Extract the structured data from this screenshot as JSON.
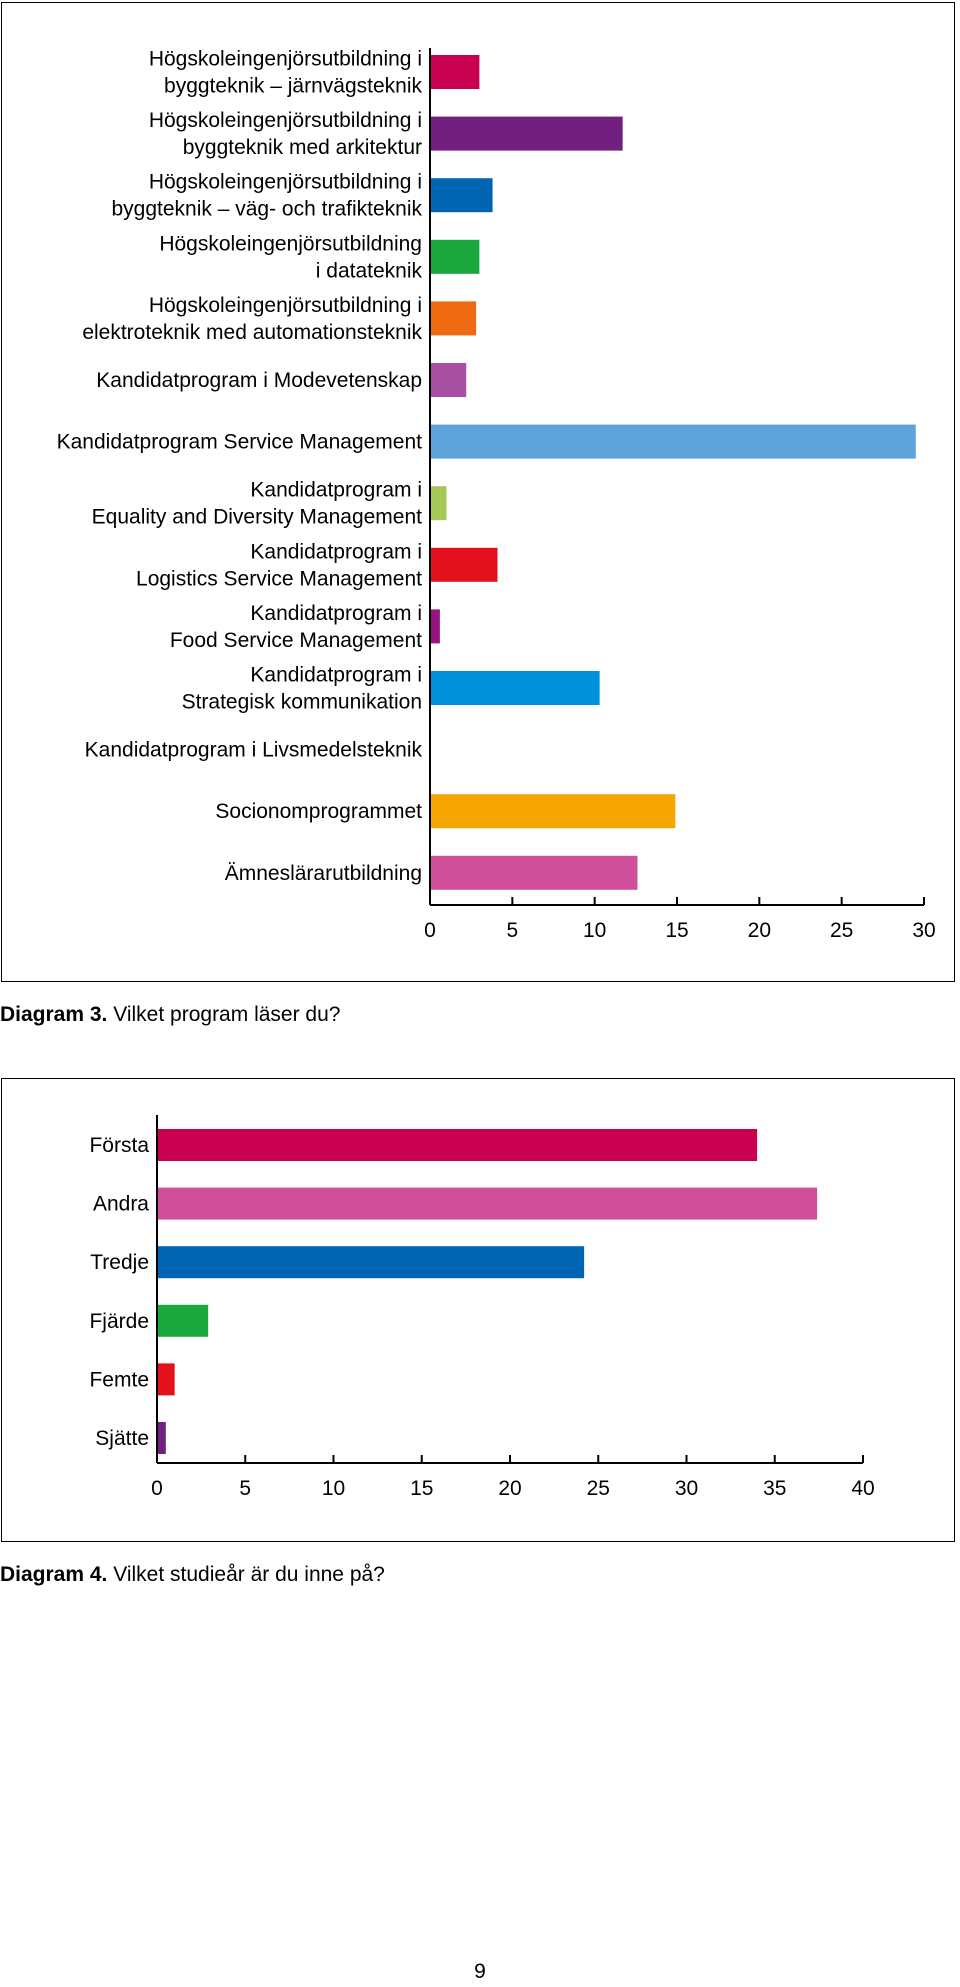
{
  "chart_data": [
    {
      "type": "bar",
      "orientation": "horizontal",
      "categories": [
        "Högskoleingenjörsutbildning i byggteknik – järnvägsteknik",
        "Högskoleingenjörsutbildning i byggteknik med arkitektur",
        "Högskoleingenjörsutbildning i byggteknik – väg- och trafikteknik",
        "Högskoleingenjörsutbildning i datateknik",
        "Högskoleingenjörsutbildning i elektroteknik med automationsteknik",
        "Kandidatprogram i Modevetenskap",
        "Kandidatprogram Service Management",
        "Kandidatprogram i Equality and Diversity Management",
        "Kandidatprogram i Logistics Service Management",
        "Kandidatprogram i Food Service Management",
        "Kandidatprogram i Strategisk kommunikation",
        "Kandidatprogram i Livsmedelsteknik",
        "Socionomprogrammet",
        "Ämneslärarutbildning"
      ],
      "label_lines": [
        [
          "Högskoleingenjörsutbildning i",
          "byggteknik – järnvägsteknik"
        ],
        [
          "Högskoleingenjörsutbildning i",
          "byggteknik med arkitektur"
        ],
        [
          "Högskoleingenjörsutbildning i",
          "byggteknik – väg- och trafikteknik"
        ],
        [
          "Högskoleingenjörsutbildning",
          "i datateknik"
        ],
        [
          "Högskoleingenjörsutbildning i",
          "elektroteknik med automationsteknik"
        ],
        [
          "Kandidatprogram i Modevetenskap"
        ],
        [
          "Kandidatprogram Service Management"
        ],
        [
          "Kandidatprogram i",
          "Equality and Diversity Management"
        ],
        [
          "Kandidatprogram i",
          "Logistics Service Management"
        ],
        [
          "Kandidatprogram i",
          "Food Service Management"
        ],
        [
          "Kandidatprogram i",
          "Strategisk kommunikation"
        ],
        [
          "Kandidatprogram i Livsmedelsteknik"
        ],
        [
          "Socionomprogrammet"
        ],
        [
          "Ämneslärarutbildning"
        ]
      ],
      "values": [
        3,
        11.7,
        3.8,
        3,
        2.8,
        2.2,
        29.5,
        1,
        4.1,
        0.6,
        10.3,
        0,
        14.9,
        12.6
      ],
      "colors": [
        "#c8004f",
        "#72207f",
        "#0066b3",
        "#1aa83e",
        "#ee6a10",
        "#a94fa1",
        "#5ea4db",
        "#a4c856",
        "#e3111b",
        "#97137f",
        "#0091dc",
        "#000000",
        "#f5a600",
        "#d04f9a"
      ],
      "xlim": [
        0,
        30
      ],
      "xticks": [
        0,
        5,
        10,
        15,
        20,
        25,
        30
      ],
      "grid": false,
      "caption_bold": "Diagram 3.",
      "caption_text": " Vilket program läser du?"
    },
    {
      "type": "bar",
      "orientation": "horizontal",
      "categories": [
        "Första",
        "Andra",
        "Tredje",
        "Fjärde",
        "Femte",
        "Sjätte"
      ],
      "values": [
        34,
        37.4,
        24.2,
        2.9,
        1,
        0.5
      ],
      "colors": [
        "#c8004f",
        "#d04f9a",
        "#0066b3",
        "#1aa83e",
        "#e3111b",
        "#72207f"
      ],
      "xlim": [
        0,
        40
      ],
      "xticks": [
        0,
        5,
        10,
        15,
        20,
        25,
        30,
        35,
        40
      ],
      "grid": false,
      "caption_bold": "Diagram 4.",
      "caption_text": " Vilket studieår är du inne på?"
    }
  ],
  "page_number": "9"
}
